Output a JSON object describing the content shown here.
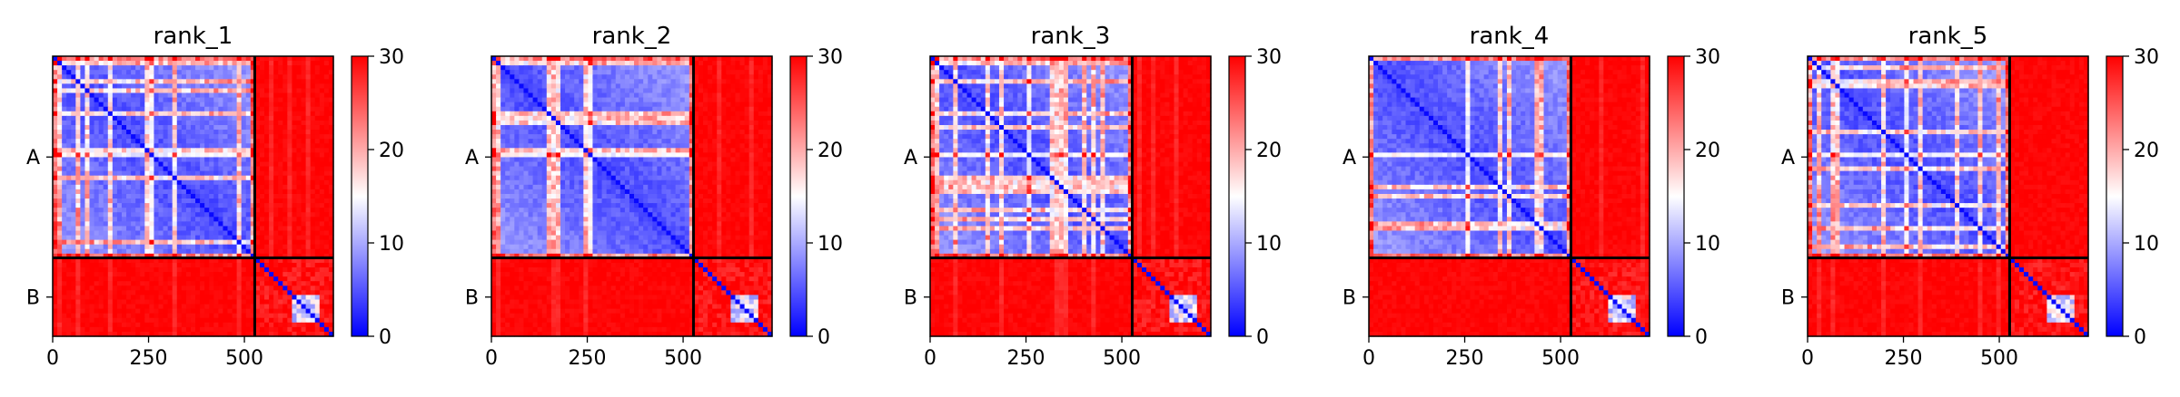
{
  "chart_data": [
    {
      "type": "heatmap",
      "title": "rank_1",
      "chains": [
        {
          "label": "A",
          "start": 0,
          "end": 527
        },
        {
          "label": "B",
          "start": 527,
          "end": 732
        }
      ],
      "xlim": [
        0,
        732
      ],
      "ylim": [
        732,
        0
      ],
      "xticks": [
        0,
        250,
        500
      ],
      "xtick_labels": [
        "0",
        "250",
        "500"
      ],
      "ytick_labels": [
        "A",
        "B"
      ],
      "colorbar": {
        "range": [
          0,
          30
        ],
        "ticks": [
          0,
          10,
          20,
          30
        ],
        "tick_labels": [
          "0",
          "10",
          "20",
          "30"
        ],
        "colormap": "bwr"
      },
      "grid": false
    },
    {
      "type": "heatmap",
      "title": "rank_2",
      "chains": [
        {
          "label": "A",
          "start": 0,
          "end": 527
        },
        {
          "label": "B",
          "start": 527,
          "end": 732
        }
      ],
      "xlim": [
        0,
        732
      ],
      "ylim": [
        732,
        0
      ],
      "xticks": [
        0,
        250,
        500
      ],
      "xtick_labels": [
        "0",
        "250",
        "500"
      ],
      "ytick_labels": [
        "A",
        "B"
      ],
      "colorbar": {
        "range": [
          0,
          30
        ],
        "ticks": [
          0,
          10,
          20,
          30
        ],
        "tick_labels": [
          "0",
          "10",
          "20",
          "30"
        ],
        "colormap": "bwr"
      },
      "grid": false
    },
    {
      "type": "heatmap",
      "title": "rank_3",
      "chains": [
        {
          "label": "A",
          "start": 0,
          "end": 527
        },
        {
          "label": "B",
          "start": 527,
          "end": 732
        }
      ],
      "xlim": [
        0,
        732
      ],
      "ylim": [
        732,
        0
      ],
      "xticks": [
        0,
        250,
        500
      ],
      "xtick_labels": [
        "0",
        "250",
        "500"
      ],
      "ytick_labels": [
        "A",
        "B"
      ],
      "colorbar": {
        "range": [
          0,
          30
        ],
        "ticks": [
          0,
          10,
          20,
          30
        ],
        "tick_labels": [
          "0",
          "10",
          "20",
          "30"
        ],
        "colormap": "bwr"
      },
      "grid": false
    },
    {
      "type": "heatmap",
      "title": "rank_4",
      "chains": [
        {
          "label": "A",
          "start": 0,
          "end": 527
        },
        {
          "label": "B",
          "start": 527,
          "end": 732
        }
      ],
      "xlim": [
        0,
        732
      ],
      "ylim": [
        732,
        0
      ],
      "xticks": [
        0,
        250,
        500
      ],
      "xtick_labels": [
        "0",
        "250",
        "500"
      ],
      "ytick_labels": [
        "A",
        "B"
      ],
      "colorbar": {
        "range": [
          0,
          30
        ],
        "ticks": [
          0,
          10,
          20,
          30
        ],
        "tick_labels": [
          "0",
          "10",
          "20",
          "30"
        ],
        "colormap": "bwr"
      },
      "grid": false
    },
    {
      "type": "heatmap",
      "title": "rank_5",
      "chains": [
        {
          "label": "A",
          "start": 0,
          "end": 527
        },
        {
          "label": "B",
          "start": 527,
          "end": 732
        }
      ],
      "xlim": [
        0,
        732
      ],
      "ylim": [
        732,
        0
      ],
      "xticks": [
        0,
        250,
        500
      ],
      "xtick_labels": [
        "0",
        "250",
        "500"
      ],
      "ytick_labels": [
        "A",
        "B"
      ],
      "colorbar": {
        "range": [
          0,
          30
        ],
        "ticks": [
          0,
          10,
          20,
          30
        ],
        "tick_labels": [
          "0",
          "10",
          "20",
          "30"
        ],
        "colormap": "bwr"
      },
      "grid": false
    }
  ]
}
